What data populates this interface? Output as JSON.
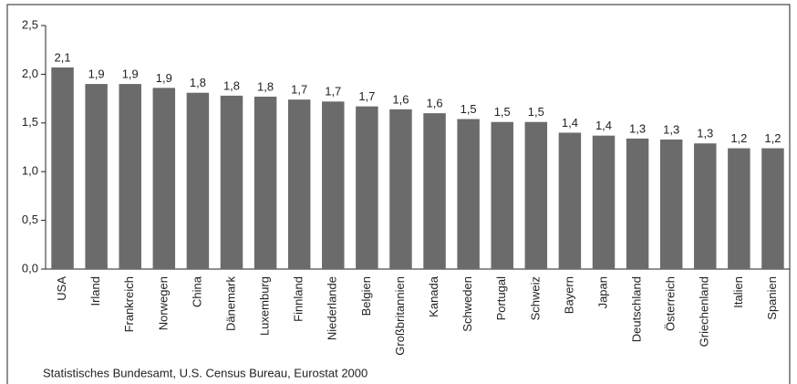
{
  "chart_data": {
    "type": "bar",
    "categories": [
      "USA",
      "Irland",
      "Frankreich",
      "Norwegen",
      "China",
      "Dänemark",
      "Luxemburg",
      "Finnland",
      "Niederlande",
      "Belgien",
      "Großbritannien",
      "Kanada",
      "Schweden",
      "Portugal",
      "Schweiz",
      "Bayern",
      "Japan",
      "Deutschland",
      "Österreich",
      "Griechenland",
      "Italien",
      "Spanien"
    ],
    "values": [
      2.07,
      1.9,
      1.9,
      1.86,
      1.81,
      1.78,
      1.77,
      1.74,
      1.72,
      1.67,
      1.64,
      1.6,
      1.54,
      1.51,
      1.51,
      1.4,
      1.37,
      1.34,
      1.33,
      1.29,
      1.24,
      1.24
    ],
    "value_labels": [
      "2,1",
      "1,9",
      "1,9",
      "1,9",
      "1,8",
      "1,8",
      "1,8",
      "1,7",
      "1,7",
      "1,7",
      "1,6",
      "1,6",
      "1,5",
      "1,5",
      "1,5",
      "1,4",
      "1,4",
      "1,3",
      "1,3",
      "1,3",
      "1,2",
      "1,2"
    ],
    "color": "#6b6b6b",
    "ylim": [
      0,
      2.5
    ],
    "yticks": [
      {
        "value": 0,
        "label": "0,0"
      },
      {
        "value": 0.5,
        "label": "0,5"
      },
      {
        "value": 1,
        "label": "1,0"
      },
      {
        "value": 1.5,
        "label": "1,5"
      },
      {
        "value": 2,
        "label": "2,0"
      },
      {
        "value": 2.5,
        "label": "2,5"
      }
    ],
    "grid": false,
    "source": "Statistisches Bundesamt, U.S. Census Bureau, Eurostat 2000"
  }
}
